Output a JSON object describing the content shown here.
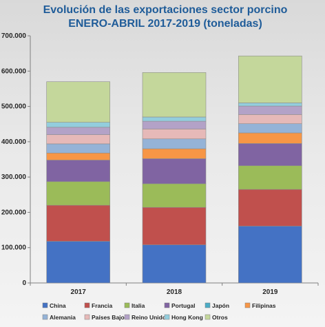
{
  "chart_data": {
    "type": "bar",
    "stacked": true,
    "title": "Evolución de las exportaciones sector porcino",
    "subtitle": "ENERO-ABRIL 2017-2019 (toneladas)",
    "categories": [
      "2017",
      "2018",
      "2019"
    ],
    "ylim": [
      0,
      700000
    ],
    "yticks": [
      "0",
      "100.000",
      "200.000",
      "300.000",
      "400.000",
      "500.000",
      "600.000",
      "700.000"
    ],
    "grid": false,
    "legend_position": "bottom",
    "series": [
      {
        "name": "China",
        "color": "#4472c4",
        "values": [
          118000,
          108000,
          161000
        ]
      },
      {
        "name": "Francia",
        "color": "#c0504d",
        "values": [
          102000,
          106000,
          104000
        ]
      },
      {
        "name": "Italia",
        "color": "#9bbb59",
        "values": [
          67000,
          67000,
          67000
        ]
      },
      {
        "name": "Portugal",
        "color": "#8064a2",
        "values": [
          61000,
          71000,
          63000
        ]
      },
      {
        "name": "Japón",
        "color": "#4bacc6",
        "values": [
          0,
          0,
          0
        ]
      },
      {
        "name": "Filipinas",
        "color": "#f79646",
        "values": [
          20000,
          28000,
          30000
        ]
      },
      {
        "name": "Alemania",
        "color": "#95b3d7",
        "values": [
          26000,
          28000,
          26000
        ]
      },
      {
        "name": "Países Bajos",
        "color": "#e6b9b8",
        "values": [
          26000,
          28000,
          26000
        ]
      },
      {
        "name": "Reino Unido",
        "color": "#b3a2c7",
        "values": [
          21000,
          22000,
          24000
        ]
      },
      {
        "name": "Hong Kong",
        "color": "#93cddd",
        "values": [
          14000,
          12000,
          9000
        ]
      },
      {
        "name": "Otros",
        "color": "#c4d79b",
        "values": [
          115000,
          126000,
          133000
        ]
      }
    ]
  }
}
